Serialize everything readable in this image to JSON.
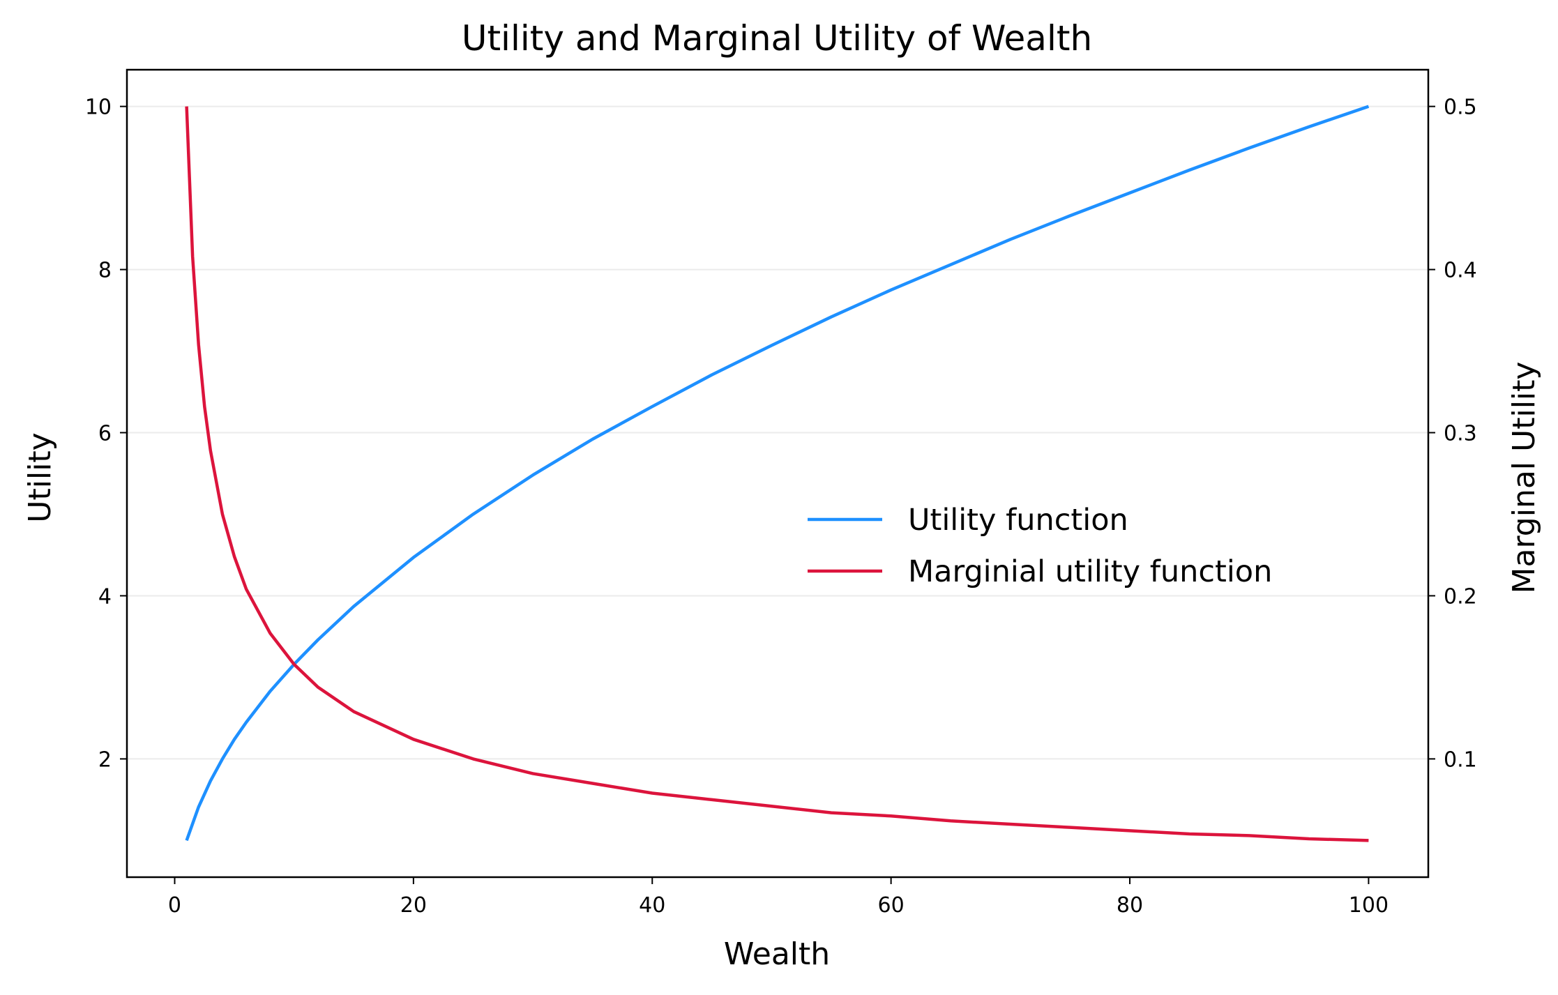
{
  "chart_data": {
    "type": "line",
    "title": "Utility and Marginal Utility of Wealth",
    "xlabel": "Wealth",
    "ylabel": "Utility",
    "y2label": "Marginal Utility",
    "xlim": [
      -4,
      105
    ],
    "ylim": [
      0.55,
      10.45
    ],
    "y2lim": [
      0.0275,
      0.5225
    ],
    "xticks": [
      0,
      20,
      40,
      60,
      80,
      100
    ],
    "yticks": [
      2,
      4,
      6,
      8,
      10
    ],
    "y2ticks": [
      0.1,
      0.2,
      0.3,
      0.4,
      0.5
    ],
    "grid": "horizontal",
    "legend_position": "center-right",
    "series": [
      {
        "name": "Utility function",
        "axis": "left",
        "color": "#1E90FF",
        "x": [
          1,
          2,
          3,
          4,
          5,
          6,
          8,
          10,
          12,
          15,
          20,
          25,
          30,
          35,
          40,
          45,
          50,
          55,
          60,
          65,
          70,
          75,
          80,
          85,
          90,
          95,
          100
        ],
        "y": [
          1.0,
          1.41,
          1.73,
          2.0,
          2.24,
          2.45,
          2.83,
          3.16,
          3.46,
          3.87,
          4.47,
          5.0,
          5.48,
          5.92,
          6.32,
          6.71,
          7.07,
          7.42,
          7.75,
          8.06,
          8.37,
          8.66,
          8.94,
          9.22,
          9.49,
          9.75,
          10.0
        ]
      },
      {
        "name": "Marginial utility function",
        "axis": "right",
        "color": "#DC143C",
        "x": [
          1,
          1.5,
          2,
          2.5,
          3,
          4,
          5,
          6,
          8,
          10,
          12,
          15,
          20,
          25,
          30,
          35,
          40,
          45,
          50,
          55,
          60,
          65,
          70,
          75,
          80,
          85,
          90,
          95,
          100
        ],
        "y": [
          0.5,
          0.408,
          0.354,
          0.316,
          0.289,
          0.25,
          0.224,
          0.204,
          0.177,
          0.158,
          0.144,
          0.129,
          0.112,
          0.1,
          0.091,
          0.085,
          0.079,
          0.075,
          0.071,
          0.067,
          0.065,
          0.062,
          0.06,
          0.058,
          0.056,
          0.054,
          0.053,
          0.051,
          0.05
        ]
      }
    ]
  }
}
